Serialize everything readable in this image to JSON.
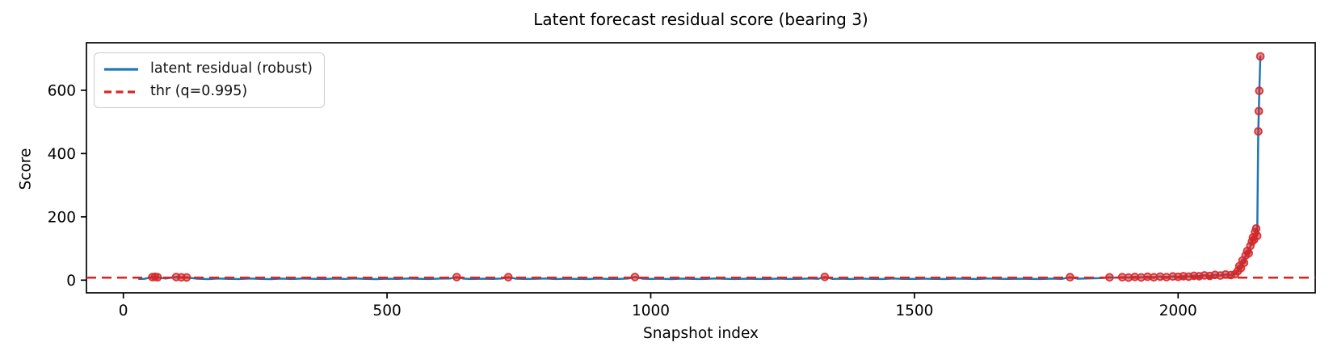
{
  "figure": {
    "title": "Latent forecast residual score (bearing 3)",
    "xlabel": "Snapshot index",
    "ylabel": "Score"
  },
  "chart_data": {
    "type": "line",
    "title": "Latent forecast residual score (bearing 3)",
    "xlabel": "Snapshot index",
    "ylabel": "Score",
    "xlim": [
      -70,
      2260
    ],
    "ylim": [
      -40,
      750
    ],
    "xticks": [
      0,
      500,
      1000,
      1500,
      2000
    ],
    "yticks": [
      0,
      200,
      400,
      600
    ],
    "grid": false,
    "legend_position": "upper left",
    "legend": [
      {
        "label": "latent residual (robust)",
        "color": "#1f77b4",
        "style": "solid"
      },
      {
        "label": "thr (q=0.995)",
        "color": "#d62728",
        "style": "dashed"
      }
    ],
    "threshold": {
      "label": "thr (q=0.995)",
      "value": 8,
      "color": "#d62728",
      "style": "dashed"
    },
    "series": [
      {
        "name": "latent residual (robust)",
        "line_color": "#1f77b4",
        "marker_color": "#d62728",
        "marker_rule": "points above threshold get red circle markers",
        "points": [
          [
            30,
            3.6
          ],
          [
            40,
            4.4
          ],
          [
            55,
            9.6
          ],
          [
            60,
            10.4
          ],
          [
            65,
            9.1
          ],
          [
            80,
            5.2
          ],
          [
            100,
            9.9
          ],
          [
            110,
            9.0
          ],
          [
            120,
            8.7
          ],
          [
            140,
            4.6
          ],
          [
            160,
            3.3
          ],
          [
            180,
            5.1
          ],
          [
            200,
            4.2
          ],
          [
            220,
            3.6
          ],
          [
            240,
            5.3
          ],
          [
            260,
            4.0
          ],
          [
            280,
            3.2
          ],
          [
            300,
            4.8
          ],
          [
            320,
            3.7
          ],
          [
            340,
            5.0
          ],
          [
            360,
            4.3
          ],
          [
            380,
            3.5
          ],
          [
            400,
            4.9
          ],
          [
            420,
            3.8
          ],
          [
            440,
            5.2
          ],
          [
            460,
            4.1
          ],
          [
            480,
            3.4
          ],
          [
            500,
            4.7
          ],
          [
            520,
            3.9
          ],
          [
            540,
            5.1
          ],
          [
            560,
            4.4
          ],
          [
            580,
            3.6
          ],
          [
            600,
            4.8
          ],
          [
            620,
            5.4
          ],
          [
            632,
            9.7
          ],
          [
            645,
            4.9
          ],
          [
            660,
            3.7
          ],
          [
            680,
            4.5
          ],
          [
            700,
            3.9
          ],
          [
            718,
            5.0
          ],
          [
            730,
            9.4
          ],
          [
            745,
            4.6
          ],
          [
            760,
            3.8
          ],
          [
            780,
            4.4
          ],
          [
            800,
            5.1
          ],
          [
            820,
            3.5
          ],
          [
            840,
            4.7
          ],
          [
            860,
            4.0
          ],
          [
            880,
            3.6
          ],
          [
            900,
            4.9
          ],
          [
            920,
            4.2
          ],
          [
            940,
            3.8
          ],
          [
            958,
            5.3
          ],
          [
            970,
            9.9
          ],
          [
            985,
            4.5
          ],
          [
            1000,
            3.9
          ],
          [
            1020,
            4.6
          ],
          [
            1040,
            3.4
          ],
          [
            1060,
            4.8
          ],
          [
            1080,
            4.1
          ],
          [
            1100,
            3.7
          ],
          [
            1120,
            5.0
          ],
          [
            1140,
            4.3
          ],
          [
            1160,
            3.6
          ],
          [
            1180,
            4.7
          ],
          [
            1200,
            4.0
          ],
          [
            1220,
            3.5
          ],
          [
            1240,
            4.9
          ],
          [
            1260,
            4.2
          ],
          [
            1280,
            3.8
          ],
          [
            1300,
            5.1
          ],
          [
            1318,
            4.4
          ],
          [
            1330,
            10.1
          ],
          [
            1345,
            3.9
          ],
          [
            1360,
            4.6
          ],
          [
            1380,
            3.5
          ],
          [
            1400,
            4.8
          ],
          [
            1420,
            4.1
          ],
          [
            1440,
            3.7
          ],
          [
            1460,
            5.0
          ],
          [
            1480,
            4.2
          ],
          [
            1500,
            3.8
          ],
          [
            1520,
            4.6
          ],
          [
            1540,
            4.0
          ],
          [
            1560,
            3.5
          ],
          [
            1580,
            4.9
          ],
          [
            1600,
            4.3
          ],
          [
            1620,
            3.7
          ],
          [
            1640,
            5.1
          ],
          [
            1660,
            4.4
          ],
          [
            1680,
            3.8
          ],
          [
            1700,
            4.7
          ],
          [
            1720,
            4.1
          ],
          [
            1740,
            3.6
          ],
          [
            1760,
            4.9
          ],
          [
            1780,
            4.2
          ],
          [
            1795,
            9.5
          ],
          [
            1810,
            4.5
          ],
          [
            1825,
            5.0
          ],
          [
            1840,
            5.8
          ],
          [
            1855,
            6.6
          ],
          [
            1870,
            8.9
          ],
          [
            1882,
            7.6
          ],
          [
            1894,
            9.4
          ],
          [
            1906,
            8.2
          ],
          [
            1918,
            10.1
          ],
          [
            1930,
            8.8
          ],
          [
            1942,
            10.6
          ],
          [
            1954,
            9.2
          ],
          [
            1966,
            11.2
          ],
          [
            1978,
            9.8
          ],
          [
            1990,
            11.8
          ],
          [
            2000,
            10.4
          ],
          [
            2010,
            12.6
          ],
          [
            2020,
            11.2
          ],
          [
            2030,
            13.8
          ],
          [
            2040,
            12.4
          ],
          [
            2050,
            15.0
          ],
          [
            2060,
            13.2
          ],
          [
            2070,
            16.6
          ],
          [
            2080,
            14.6
          ],
          [
            2090,
            17.8
          ],
          [
            2100,
            16.0
          ],
          [
            2108,
            18.8
          ],
          [
            2113,
            28
          ],
          [
            2116,
            44
          ],
          [
            2119,
            38
          ],
          [
            2122,
            62
          ],
          [
            2125,
            55
          ],
          [
            2128,
            78
          ],
          [
            2131,
            92
          ],
          [
            2134,
            85
          ],
          [
            2137,
            108
          ],
          [
            2140,
            122
          ],
          [
            2142,
            135
          ],
          [
            2144,
            128
          ],
          [
            2146,
            152
          ],
          [
            2148,
            163
          ],
          [
            2150,
            140
          ],
          [
            2152,
            470
          ],
          [
            2153,
            534
          ],
          [
            2154,
            598
          ],
          [
            2156,
            707
          ]
        ]
      }
    ]
  },
  "colors": {
    "line": "#1f77b4",
    "threshold": "#d62728",
    "marker": "#d62728",
    "spine": "#000000",
    "text": "#000000",
    "legend_border": "#cccccc",
    "background": "#ffffff"
  }
}
